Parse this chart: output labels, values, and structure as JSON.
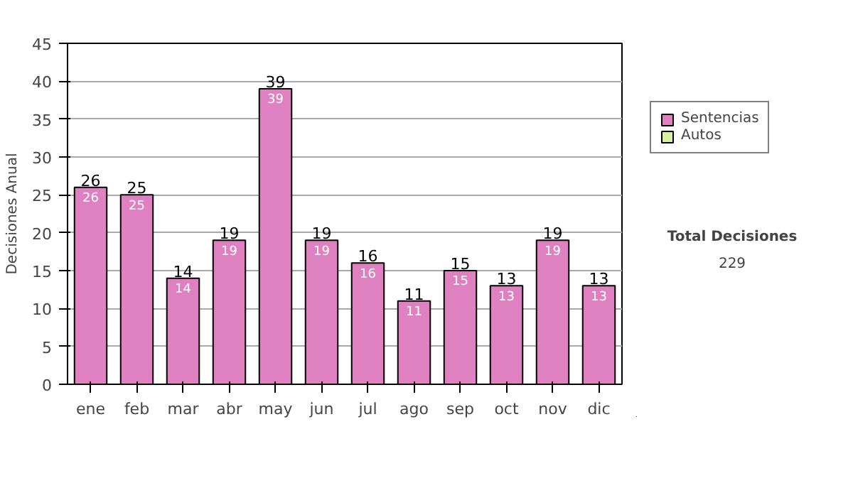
{
  "chart_data": {
    "type": "bar",
    "stacked": true,
    "ylabel": "Decisiones Anual",
    "categories": [
      "ene",
      "feb",
      "mar",
      "abr",
      "may",
      "jun",
      "jul",
      "ago",
      "sep",
      "oct",
      "nov",
      "dic"
    ],
    "series": [
      {
        "name": "Sentencias",
        "color": "#df80c0",
        "values": [
          26,
          25,
          14,
          19,
          39,
          19,
          16,
          11,
          15,
          13,
          19,
          13
        ]
      },
      {
        "name": "Autos",
        "color": "#d8f0a0",
        "values": [
          null,
          null,
          null,
          null,
          null,
          null,
          null,
          null,
          null,
          null,
          null,
          null
        ]
      }
    ],
    "data_labels": true,
    "totals": [
      "26",
      "25",
      "14",
      "19",
      "39",
      "19",
      "16",
      "11",
      "15",
      "13",
      "19",
      "13"
    ],
    "ylim": [
      0,
      45
    ],
    "yticks": [
      0,
      5,
      10,
      15,
      20,
      25,
      30,
      35,
      40,
      45
    ],
    "grid": "y",
    "legend": "right",
    "annotations": [
      "Total Decisiones",
      "229"
    ]
  }
}
